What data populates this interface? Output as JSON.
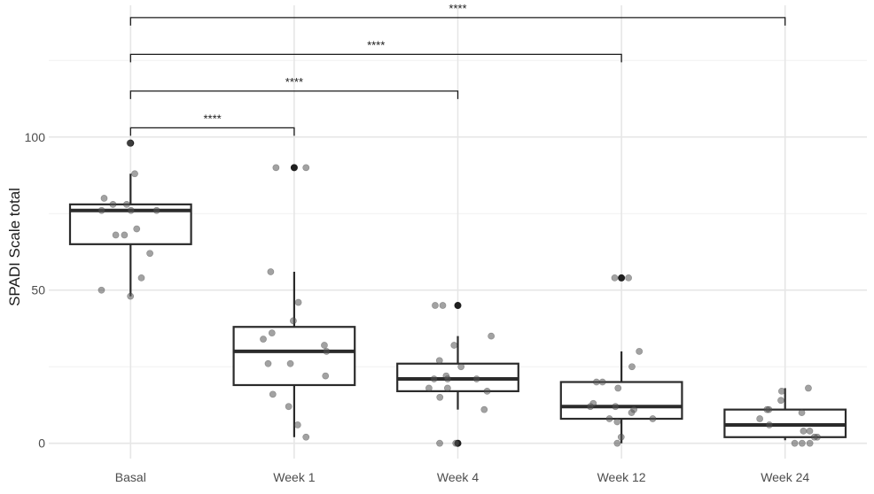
{
  "chart_data": {
    "type": "box",
    "title": "",
    "xlabel": "",
    "ylabel": "SPADI Scale total",
    "ylim": [
      -5,
      143
    ],
    "y_ticks": [
      0,
      50,
      100
    ],
    "grid": true,
    "categories": [
      "Basal",
      "Week 1",
      "Week 4",
      "Week 12",
      "Week 24"
    ],
    "boxes": [
      {
        "category": "Basal",
        "whisker_low": 48,
        "q1": 65,
        "median": 76,
        "q3": 78,
        "whisker_high": 88,
        "outliers": [
          98
        ]
      },
      {
        "category": "Week 1",
        "whisker_low": 2,
        "q1": 19,
        "median": 30,
        "q3": 38,
        "whisker_high": 56,
        "outliers": [
          90
        ]
      },
      {
        "category": "Week 4",
        "whisker_low": 11,
        "q1": 17,
        "median": 21,
        "q3": 26,
        "whisker_high": 35,
        "outliers": [
          0,
          45
        ]
      },
      {
        "category": "Week 12",
        "whisker_low": 0,
        "q1": 8,
        "median": 12,
        "q3": 20,
        "whisker_high": 30,
        "outliers": [
          54
        ]
      },
      {
        "category": "Week 24",
        "whisker_low": 1,
        "q1": 2,
        "median": 6,
        "q3": 11,
        "whisker_high": 18,
        "outliers": []
      }
    ],
    "points": [
      {
        "category": "Basal",
        "values": [
          98,
          88,
          80,
          78,
          78,
          76,
          76,
          76,
          70,
          68,
          68,
          62,
          54,
          50,
          48
        ]
      },
      {
        "category": "Week 1",
        "values": [
          90,
          90,
          56,
          46,
          40,
          36,
          34,
          32,
          30,
          26,
          26,
          22,
          16,
          12,
          6,
          2
        ]
      },
      {
        "category": "Week 4",
        "values": [
          45,
          45,
          35,
          32,
          27,
          25,
          22,
          21,
          21,
          21,
          18,
          18,
          17,
          15,
          11,
          0,
          0
        ]
      },
      {
        "category": "Week 12",
        "values": [
          54,
          54,
          30,
          25,
          20,
          20,
          18,
          13,
          12,
          12,
          11,
          10,
          8,
          8,
          7,
          2,
          0
        ]
      },
      {
        "category": "Week 24",
        "values": [
          18,
          17,
          14,
          11,
          11,
          10,
          8,
          6,
          4,
          4,
          2,
          2,
          0,
          0,
          0
        ]
      }
    ],
    "comparisons": [
      {
        "from": "Basal",
        "to": "Week 1",
        "y": 103,
        "label": "****"
      },
      {
        "from": "Basal",
        "to": "Week 4",
        "y": 115,
        "label": "****"
      },
      {
        "from": "Basal",
        "to": "Week 12",
        "y": 127,
        "label": "****"
      },
      {
        "from": "Basal",
        "to": "Week 24",
        "y": 139,
        "label": "****"
      }
    ],
    "colors": {
      "box_stroke": "#2b2b2b",
      "point": "#555555",
      "outlier": "#1f1f1f",
      "grid": "#e6e6e6"
    }
  }
}
